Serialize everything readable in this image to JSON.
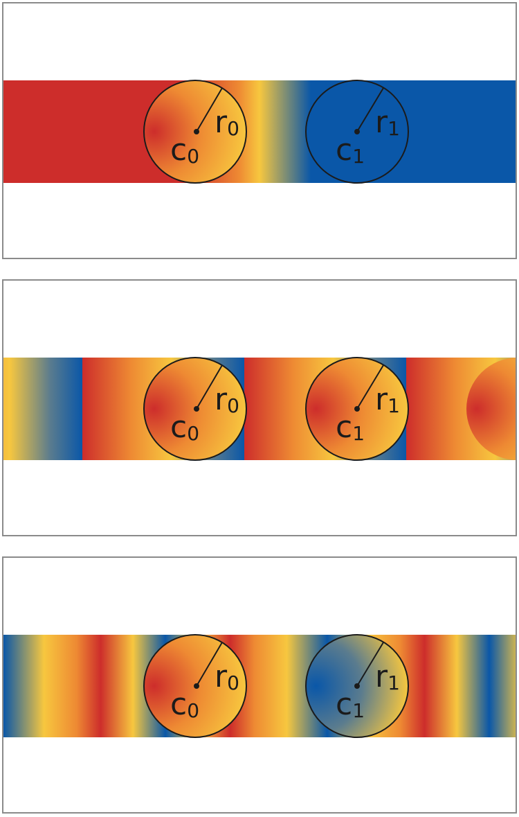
{
  "colors": {
    "red": "#cd2d2b",
    "orange": "#ee8a33",
    "yellow": "#f7c73f",
    "blue": "#0a57a8",
    "outline": "#1b1b1b",
    "frame": "#8a8a8a"
  },
  "labels": {
    "center_start": "c",
    "center_start_sub": "0",
    "center_end": "c",
    "center_end_sub": "1",
    "radius_start": "r",
    "radius_start_sub": "0",
    "radius_end": "r",
    "radius_end_sub": "1"
  },
  "panels": [
    {
      "spread": "pad",
      "start_circle": "orange-yellow",
      "end_circle": "blue"
    },
    {
      "spread": "repeat",
      "start_circle": "red-yellow",
      "end_circle": "red-yellow"
    },
    {
      "spread": "reflect",
      "start_circle": "red-yellow",
      "end_circle": "blue-yellow"
    }
  ]
}
